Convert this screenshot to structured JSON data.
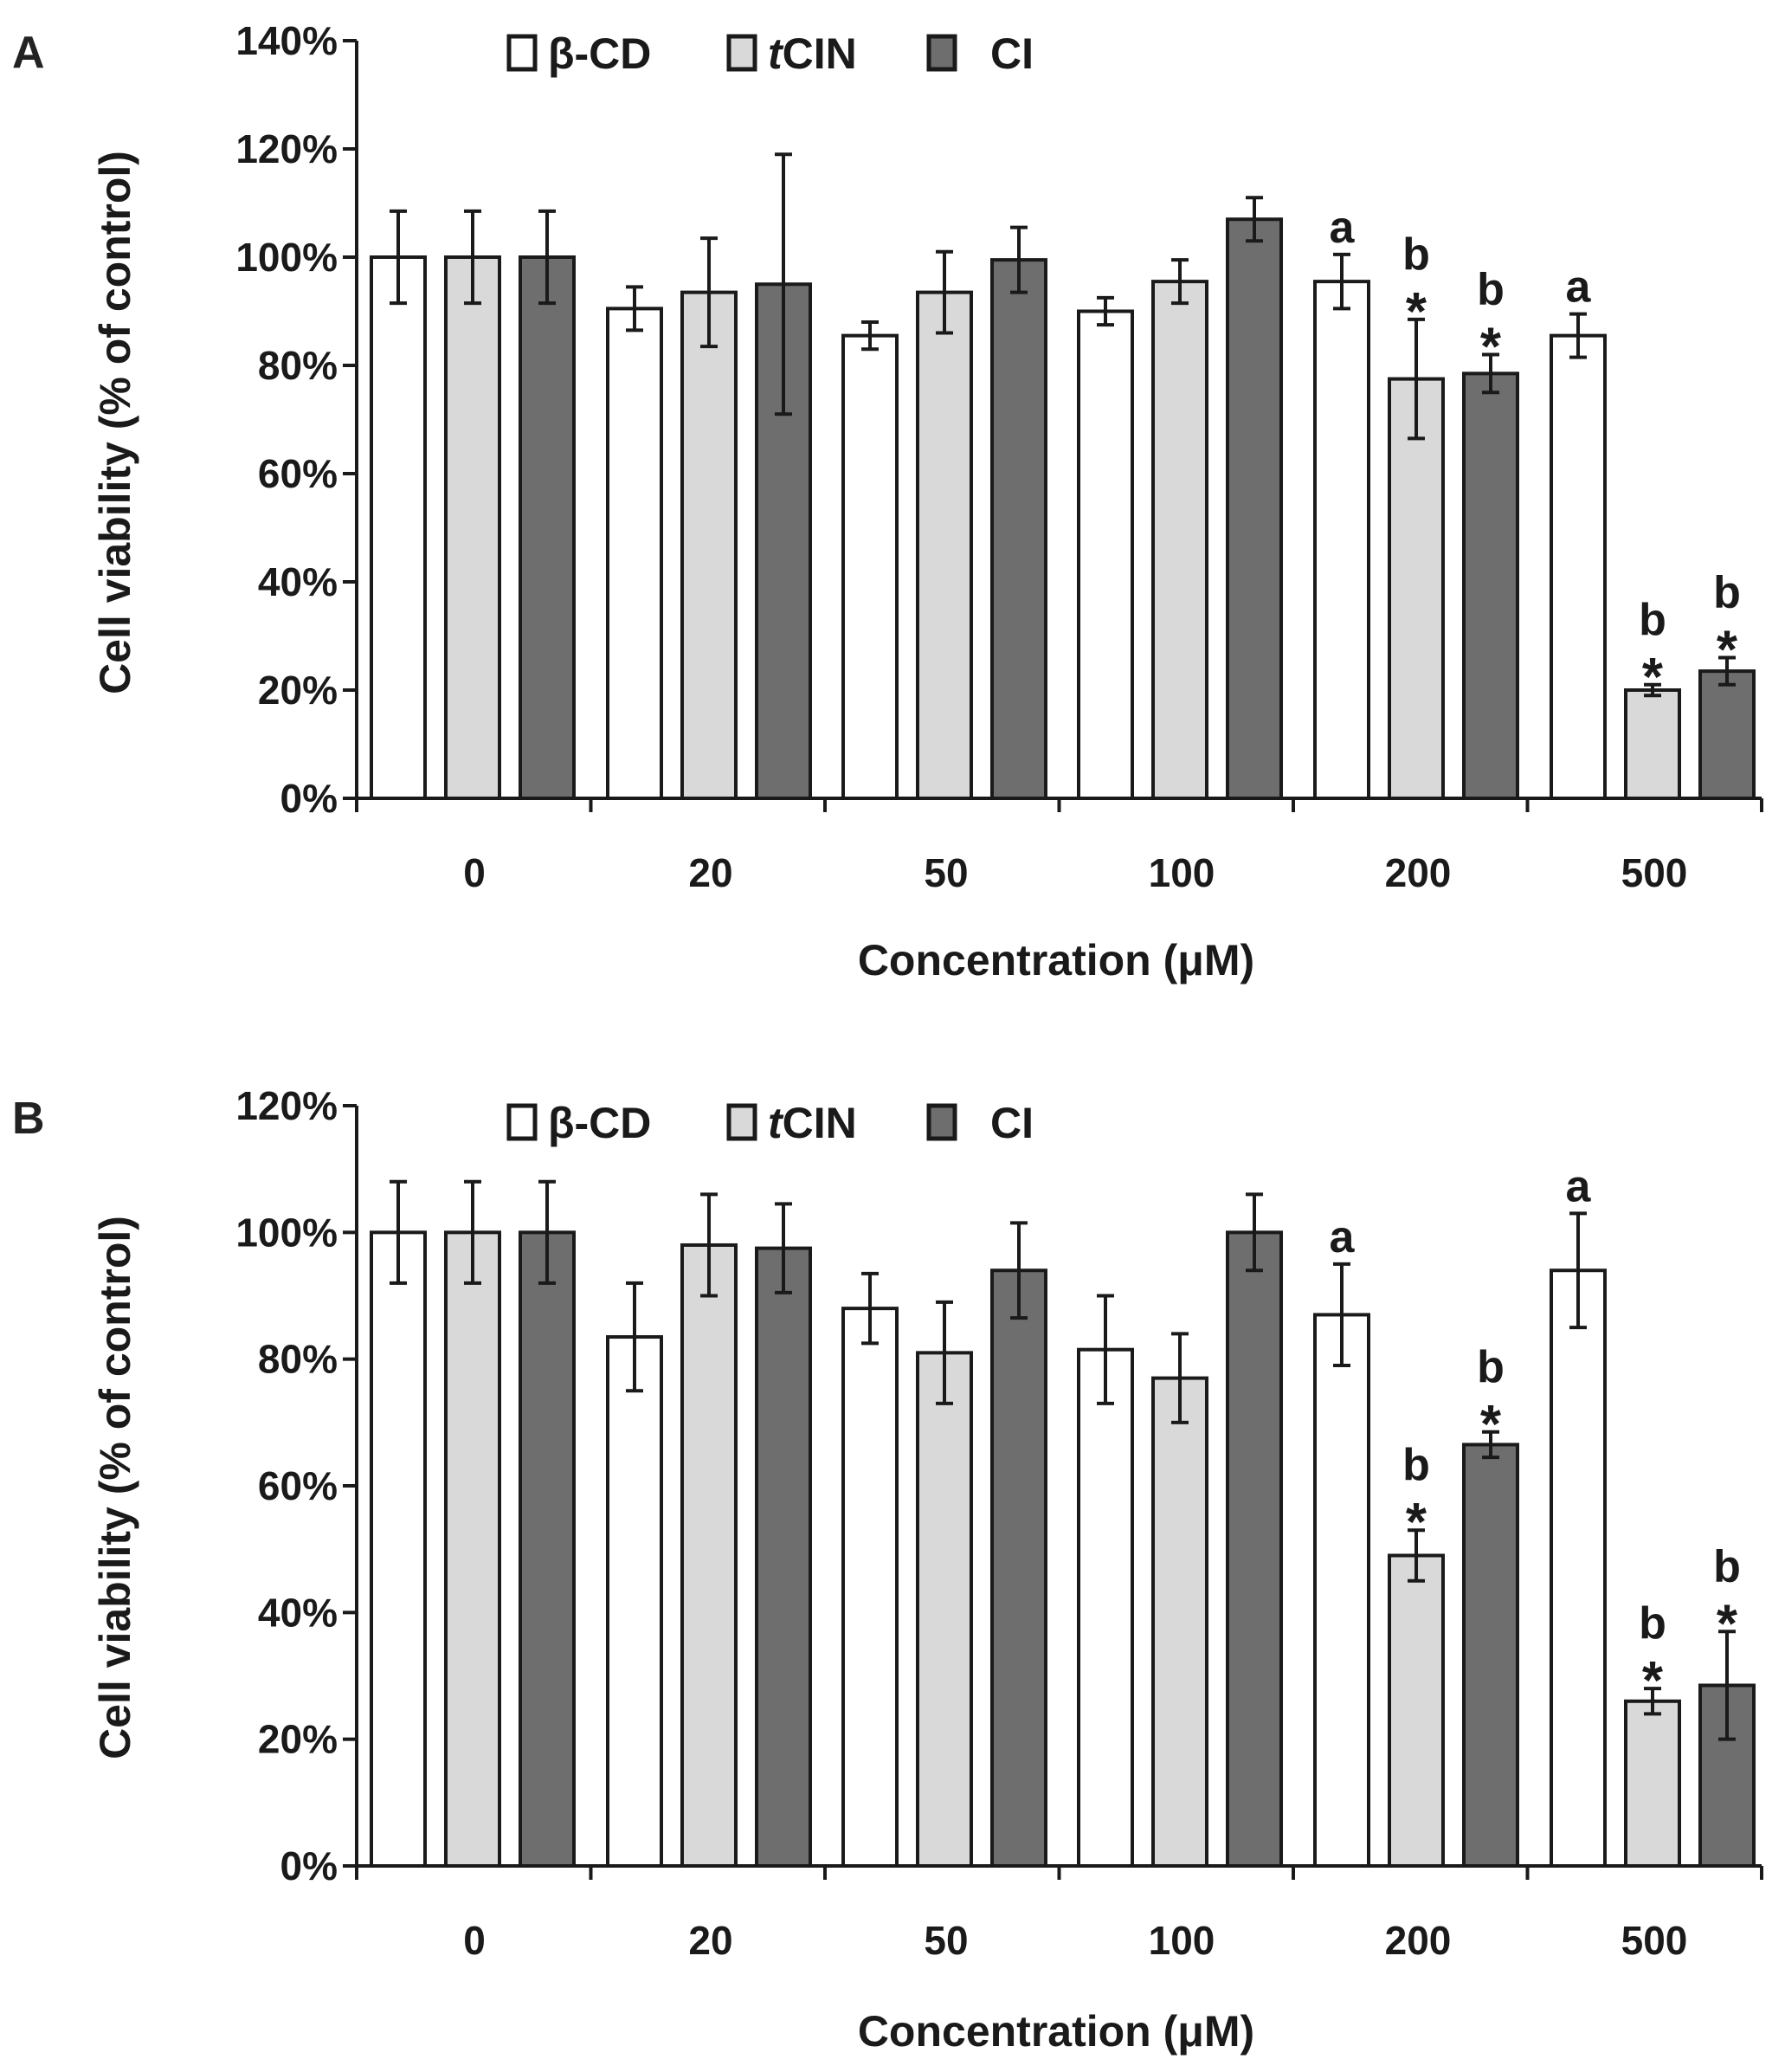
{
  "series_styles": [
    {
      "name": "β-CD",
      "fill": "#ffffff"
    },
    {
      "name": "tCIN",
      "fill": "#d9d9d9"
    },
    {
      "name": "CI",
      "fill": "#6e6e6e"
    }
  ],
  "stroke_color": "#1a1a1a",
  "chart_data": [
    {
      "panel": "A",
      "type": "bar",
      "categories": [
        "0",
        "20",
        "50",
        "100",
        "200",
        "500"
      ],
      "xlabel": "Concentration (μM)",
      "ylabel": "Cell viability (% of control)",
      "ylim": [
        0,
        140
      ],
      "yticks": [
        "0%",
        "20%",
        "40%",
        "60%",
        "80%",
        "100%",
        "120%",
        "140%"
      ],
      "legend": {
        "prefix": "",
        "items": [
          "β-CD",
          "t",
          "CIN",
          "CI"
        ]
      },
      "series": [
        {
          "name": "β-CD",
          "values": [
            100,
            90.5,
            85.5,
            90,
            95.5,
            85.5
          ],
          "errors": [
            8.5,
            4,
            2.5,
            2.5,
            5,
            4
          ],
          "annotations": [
            [],
            [],
            [],
            [],
            [
              "a"
            ],
            [
              "a"
            ]
          ]
        },
        {
          "name": "tCIN",
          "values": [
            100,
            93.5,
            93.5,
            95.5,
            77.5,
            20
          ],
          "errors": [
            8.5,
            10,
            7.5,
            4,
            11,
            1
          ],
          "annotations": [
            [],
            [],
            [],
            [],
            [
              "b",
              "*"
            ],
            [
              "b",
              "*"
            ]
          ]
        },
        {
          "name": "CI",
          "values": [
            100,
            95,
            99.5,
            107,
            78.5,
            23.5
          ],
          "errors": [
            8.5,
            24,
            6,
            4,
            3.5,
            2.5
          ],
          "annotations": [
            [],
            [],
            [],
            [],
            [
              "b",
              "*"
            ],
            [
              "b",
              "*"
            ]
          ]
        }
      ]
    },
    {
      "panel": "B",
      "type": "bar",
      "categories": [
        "0",
        "20",
        "50",
        "100",
        "200",
        "500"
      ],
      "xlabel": "Concentration (μM)",
      "ylabel": "Cell viability (% of control)",
      "ylim": [
        0,
        120
      ],
      "yticks": [
        "0%",
        "20%",
        "40%",
        "60%",
        "80%",
        "100%",
        "120%"
      ],
      "legend": {
        "prefix": "",
        "items": [
          "β-CD",
          "t",
          "CIN",
          "CI"
        ]
      },
      "series": [
        {
          "name": "β-CD",
          "values": [
            100,
            83.5,
            88,
            81.5,
            87,
            94
          ],
          "errors": [
            8,
            8.5,
            5.5,
            8.5,
            8,
            9
          ],
          "annotations": [
            [],
            [],
            [],
            [],
            [
              "a"
            ],
            [
              "a"
            ]
          ]
        },
        {
          "name": "tCIN",
          "values": [
            100,
            98,
            81,
            77,
            49,
            26
          ],
          "errors": [
            8,
            8,
            8,
            7,
            4,
            2
          ],
          "annotations": [
            [],
            [],
            [],
            [],
            [
              "b",
              "*"
            ],
            [
              "b",
              "*"
            ]
          ]
        },
        {
          "name": "CI",
          "values": [
            100,
            97.5,
            94,
            100,
            66.5,
            28.5
          ],
          "errors": [
            8,
            7,
            7.5,
            6,
            2,
            8.5
          ],
          "annotations": [
            [],
            [],
            [],
            [],
            [
              "b",
              "*"
            ],
            [
              "b",
              "*"
            ]
          ]
        }
      ]
    }
  ]
}
